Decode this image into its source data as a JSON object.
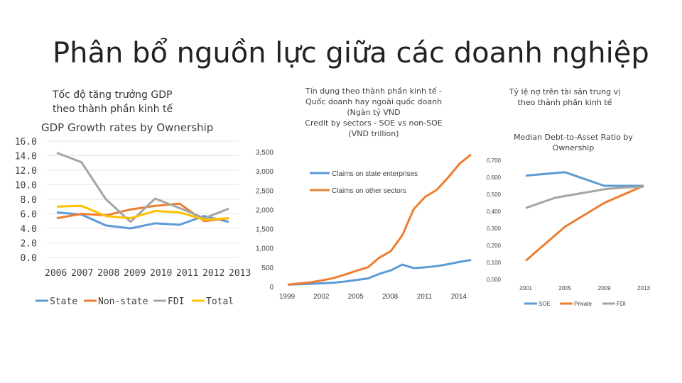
{
  "slide": {
    "title": "Phân bổ nguồn lực giữa các doanh nghiệp"
  },
  "colors": {
    "blue": "#5b9bd5",
    "orange": "#ed7d31",
    "gray": "#a5a5a5",
    "yellow": "#ffc000",
    "grid": "#e6e6e6"
  },
  "chart_data": [
    {
      "type": "line",
      "title_vn": [
        "Tốc độ tăng trưởng GDP",
        "theo thành phần kinh tế"
      ],
      "title": "GDP Growth rates by Ownership",
      "categories": [
        "2006",
        "2007",
        "2008",
        "2009",
        "2010",
        "2011",
        "2012",
        "2013"
      ],
      "ylim": [
        0,
        16
      ],
      "yticks": [
        "0.0",
        "2.0",
        "4.0",
        "6.0",
        "8.0",
        "10.0",
        "12.0",
        "14.0",
        "16.0"
      ],
      "series": [
        {
          "name": "State",
          "color": "#5b9bd5",
          "values": [
            6.2,
            5.9,
            4.4,
            4.0,
            4.7,
            4.5,
            5.7,
            4.9
          ]
        },
        {
          "name": "Non-state",
          "color": "#ed7d31",
          "values": [
            5.4,
            6.0,
            5.8,
            6.6,
            7.1,
            7.4,
            5.0,
            5.4
          ]
        },
        {
          "name": "FDI",
          "color": "#a5a5a5",
          "values": [
            14.4,
            13.1,
            8.0,
            4.9,
            8.1,
            6.8,
            5.4,
            6.7
          ]
        },
        {
          "name": "Total",
          "color": "#ffc000",
          "values": [
            7.0,
            7.1,
            5.7,
            5.4,
            6.4,
            6.2,
            5.2,
            5.4
          ]
        }
      ],
      "legend": "bottom"
    },
    {
      "type": "line",
      "title_vn": [
        "Tín dụng theo thành phần kinh tế -",
        "Quốc doanh hay ngoài quốc doanh",
        "(Ngàn tỷ VND"
      ],
      "title": [
        "Credit by sectors - SOE vs non-SOE",
        "(VND trillion)"
      ],
      "x": [
        1999,
        2000,
        2001,
        2002,
        2003,
        2004,
        2005,
        2006,
        2007,
        2008,
        2009,
        2010,
        2011,
        2012,
        2013,
        2014,
        2015
      ],
      "xticks": [
        "1999",
        "2002",
        "2005",
        "2008",
        "2011",
        "2014"
      ],
      "xlim": [
        1999,
        2015
      ],
      "ylim": [
        0,
        3500
      ],
      "yticks": [
        "0",
        "500",
        "1,000",
        "1,500",
        "2,000",
        "2,500",
        "3,000",
        "3,500"
      ],
      "series": [
        {
          "name": "Claims on state enterprises",
          "color": "#5b9bd5",
          "values": [
            50,
            60,
            70,
            85,
            100,
            130,
            170,
            210,
            330,
            420,
            570,
            480,
            500,
            530,
            580,
            640,
            690
          ]
        },
        {
          "name": "Claims on other sectors",
          "color": "#ed7d31",
          "values": [
            50,
            80,
            110,
            160,
            220,
            310,
            410,
            500,
            750,
            920,
            1330,
            2010,
            2330,
            2510,
            2830,
            3190,
            3550
          ]
        }
      ],
      "legend": "top-center"
    },
    {
      "type": "line",
      "title_vn": [
        "Tỷ lệ nợ trên tài sản trung vị",
        "theo thành phần kinh tế"
      ],
      "title": [
        "Median Debt-to-Asset Ratio by",
        "Ownership"
      ],
      "x": [
        2001,
        2005,
        2009,
        2013
      ],
      "xticks": [
        "2001",
        "2005",
        "2009",
        "2013"
      ],
      "ylim": [
        0,
        0.7
      ],
      "yticks": [
        "0.000",
        "0.100",
        "0.200",
        "0.300",
        "0.400",
        "0.500",
        "0.600",
        "0.700"
      ],
      "series": [
        {
          "name": "SOE",
          "color": "#5b9bd5",
          "x": [
            2001,
            2005,
            2009,
            2013
          ],
          "values": [
            0.61,
            0.63,
            0.55,
            0.55
          ]
        },
        {
          "name": "Private",
          "color": "#ed7d31",
          "x": [
            2001,
            2005,
            2009,
            2013
          ],
          "values": [
            0.11,
            0.31,
            0.45,
            0.55
          ]
        },
        {
          "name": "FDI",
          "color": "#a5a5a5",
          "x": [
            2001,
            2002,
            2004,
            2005,
            2007,
            2009,
            2011,
            2013
          ],
          "values": [
            0.42,
            0.44,
            0.48,
            0.49,
            0.51,
            0.53,
            0.54,
            0.545
          ]
        }
      ],
      "legend": "bottom"
    }
  ]
}
